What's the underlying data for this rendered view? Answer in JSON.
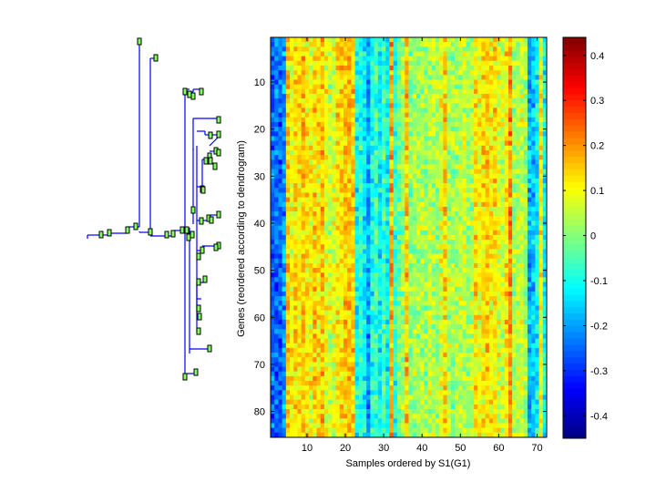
{
  "chart_data": {
    "type": "heatmap",
    "title": "",
    "xlabel": "Samples ordered by S1(G1)",
    "ylabel": "Genes (reordered according to dendrogram)",
    "n_samples": 72,
    "n_genes": 85,
    "x_ticks": [
      10,
      20,
      30,
      40,
      50,
      60,
      70
    ],
    "y_ticks": [
      10,
      20,
      30,
      40,
      50,
      60,
      70,
      80
    ],
    "colorbar": {
      "colormap": "jet",
      "range": [
        -0.45,
        0.44
      ],
      "ticks": [
        0.4,
        0.3,
        0.2,
        0.1,
        0,
        -0.1,
        -0.2,
        -0.3,
        -0.4
      ],
      "tick_labels": [
        "0.4",
        "0.3",
        "0.2",
        "0.1",
        "0",
        "-0.1",
        "-0.2",
        "-0.3",
        "-0.4"
      ]
    },
    "column_mean_profile": [
      -0.25,
      -0.24,
      -0.26,
      -0.2,
      0.14,
      0.1,
      0.13,
      0.12,
      0.15,
      0.11,
      0.1,
      0.14,
      0.12,
      0.16,
      0.1,
      0.06,
      0.08,
      0.12,
      0.13,
      0.15,
      0.16,
      0.14,
      -0.1,
      -0.08,
      -0.12,
      -0.2,
      -0.1,
      -0.06,
      -0.12,
      -0.05,
      -0.12,
      0.18,
      -0.08,
      -0.02,
      0.02,
      0.16,
      0.0,
      0.03,
      0.02,
      0.04,
      0.02,
      0.06,
      0.04,
      0.03,
      0.08,
      0.14,
      0.04,
      0.02,
      0.03,
      0.05,
      0.06,
      0.02,
      0.04,
      0.12,
      0.1,
      0.12,
      0.14,
      0.1,
      0.13,
      0.08,
      0.06,
      0.12,
      0.2,
      0.03,
      0.05,
      0.06,
      0.02,
      -0.18,
      -0.16,
      -0.12,
      0.1,
      -0.1
    ],
    "noise_amplitude": 0.07,
    "dendrogram": {
      "orientation": "left",
      "leaves": 85
    }
  }
}
